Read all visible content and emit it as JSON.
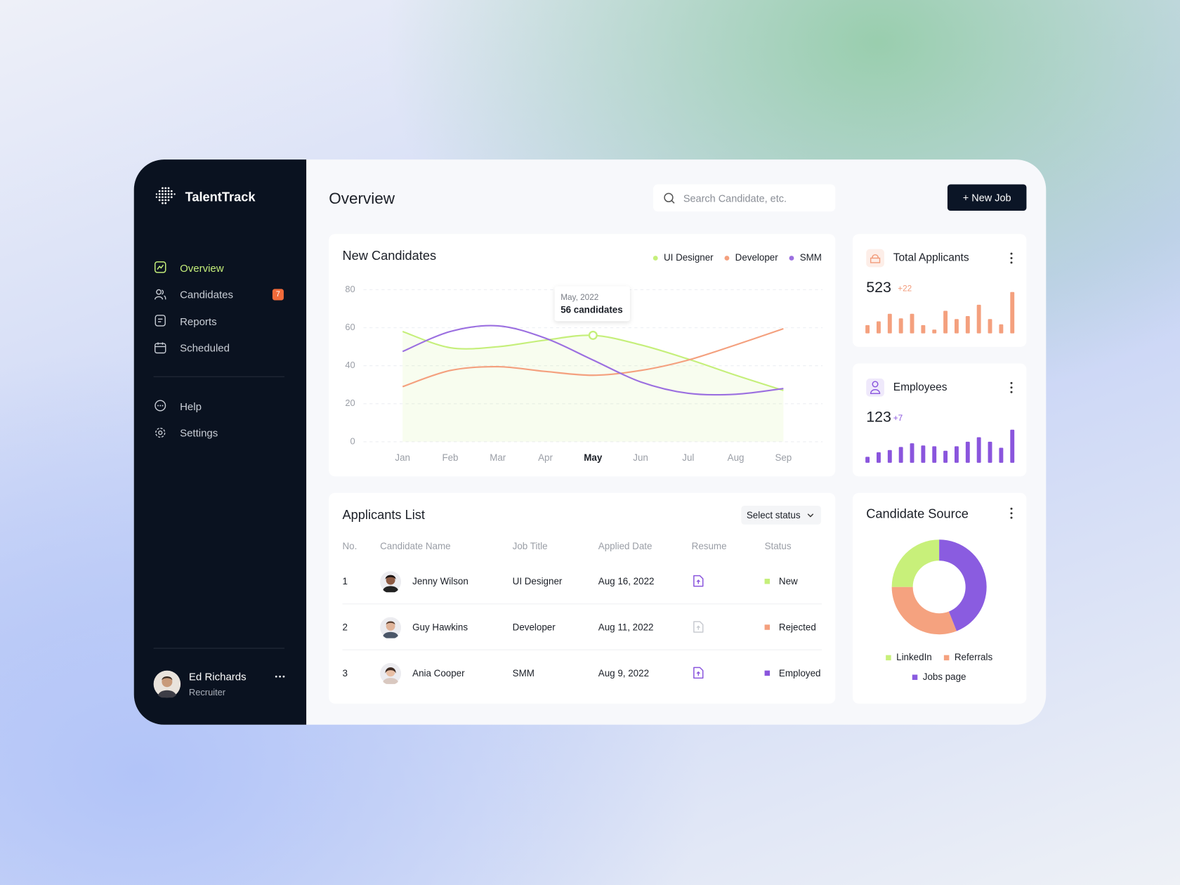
{
  "sidebar": {
    "brand": "TalentTrack",
    "nav": [
      "Overview",
      "Candidates",
      "Reports",
      "Scheduled"
    ],
    "candidates_badge": 7,
    "nav_bottom": [
      "Help",
      "Settings"
    ],
    "user": {
      "name": "Ed Richards",
      "role": "Recruiter"
    }
  },
  "header": {
    "title": "Overview",
    "search_placeholder": "Search Candidate, etc.",
    "button": "+ New Job"
  },
  "chart_data": [
    {
      "type": "line",
      "title": "New Candidates",
      "categories": [
        "Jan",
        "Feb",
        "Mar",
        "Apr",
        "May",
        "Jun",
        "Jul",
        "Aug",
        "Sep"
      ],
      "series": [
        {
          "name": "UI Designer",
          "color": "#c5ef7a",
          "area": true,
          "values": [
            58,
            49.5,
            50,
            53.5,
            56,
            51,
            43.5,
            35,
            27
          ]
        },
        {
          "name": "Developer",
          "color": "#f4a07e",
          "values": [
            29,
            37.5,
            39.5,
            37,
            35,
            37.5,
            43,
            51,
            59.5
          ]
        },
        {
          "name": "SMM",
          "color": "#9b6fe0",
          "values": [
            47.5,
            58,
            61,
            54.5,
            43,
            31.5,
            25.5,
            25,
            28
          ]
        }
      ],
      "ylim": [
        0,
        80
      ],
      "yticks": [
        0,
        20,
        40,
        60,
        80
      ],
      "grid": true,
      "highlight": "May",
      "tooltip": {
        "title": "May, 2022",
        "text": "56 candidates"
      }
    },
    {
      "type": "bar",
      "title": "Total Applicants",
      "total": 523,
      "change": "+22",
      "color": "#f4a07e",
      "ylim": [
        0,
        60
      ],
      "values": [
        11,
        16,
        26,
        20,
        26,
        11,
        5,
        30,
        19,
        23,
        38,
        19,
        12,
        55
      ]
    },
    {
      "type": "bar",
      "title": "Employees",
      "total": 123,
      "change": "+7",
      "color": "#8a55dd",
      "ylim": [
        0,
        60
      ],
      "values": [
        8,
        14,
        17,
        21,
        26,
        23,
        22,
        16,
        22,
        28,
        34,
        28,
        20,
        44
      ]
    },
    {
      "type": "pie",
      "donut": true,
      "title": "Candidate Source",
      "categories": [
        "LinkedIn",
        "Referrals",
        "Jobs page"
      ],
      "values": [
        25,
        31,
        44
      ],
      "colors": [
        "#c8f07a",
        "#f5a27f",
        "#8a5ce0"
      ]
    }
  ],
  "applicants_list": {
    "title": "Applicants List",
    "filter": "Select status",
    "columns": [
      "No.",
      "Candidate Name",
      "Job Title",
      "Applied Date",
      "Resume",
      "Status"
    ],
    "rows": [
      {
        "no": 1,
        "name": "Jenny Wilson",
        "job": "UI Designer",
        "date": "Aug 16, 2022",
        "status": "New"
      },
      {
        "no": 2,
        "name": "Guy Hawkins",
        "job": "Developer",
        "date": "Aug 11, 2022",
        "status": "Rejected"
      },
      {
        "no": 3,
        "name": "Ania Cooper",
        "job": "SMM",
        "date": "Aug 9, 2022",
        "status": "Employed"
      }
    ]
  }
}
